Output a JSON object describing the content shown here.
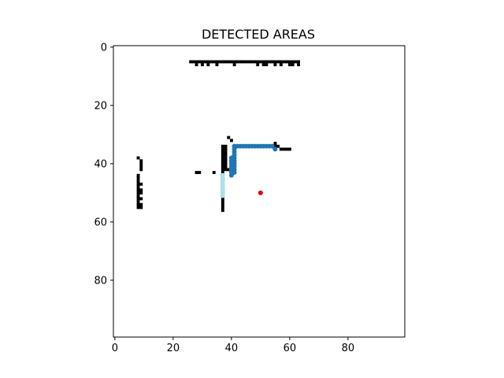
{
  "chart_data": {
    "type": "scatter",
    "title": "DETECTED AREAS",
    "xlabel": "",
    "ylabel": "",
    "xlim": [
      -0.5,
      99.5
    ],
    "ylim": [
      99.5,
      -0.5
    ],
    "y_inverted": true,
    "grid": false,
    "x_ticks": [
      0,
      20,
      40,
      60,
      80
    ],
    "y_ticks": [
      0,
      20,
      40,
      60,
      80
    ],
    "colors": {
      "occupied": "#000000",
      "area_dark": "#1f77b4",
      "area_light": "#aedde8",
      "robot": "#e00000"
    },
    "occupied_segments": [
      {
        "y": 5,
        "x0": 26,
        "x1": 63
      },
      {
        "y": 6,
        "x": [
          28,
          30,
          32,
          35,
          41,
          49,
          51,
          52,
          55,
          57,
          60,
          61,
          63
        ]
      },
      {
        "y": 31,
        "x0": 39,
        "x1": 39
      },
      {
        "y": 32,
        "x0": 40,
        "x1": 40
      },
      {
        "y": 34,
        "x0": 37,
        "x1": 38
      },
      {
        "y": 35,
        "x0": 37,
        "x1": 38
      },
      {
        "y": 35,
        "x0": 57,
        "x1": 60
      },
      {
        "y": 34,
        "x0": 55,
        "x1": 56
      },
      {
        "y": 33,
        "x0": 55,
        "x1": 55
      },
      {
        "y": 36,
        "x0": 37,
        "x1": 38
      },
      {
        "y": 37,
        "x0": 37,
        "x1": 38
      },
      {
        "y": 38,
        "x0": 37,
        "x1": 38
      },
      {
        "y": 39,
        "x0": 37,
        "x1": 38
      },
      {
        "y": 40,
        "x0": 37,
        "x1": 38
      },
      {
        "y": 41,
        "x0": 37,
        "x1": 38
      },
      {
        "y": 42,
        "x0": 37,
        "x1": 39
      },
      {
        "y": 43,
        "x0": 37,
        "x1": 37
      },
      {
        "y": 43,
        "x0": 28,
        "x1": 29
      },
      {
        "y": 43,
        "x0": 34,
        "x1": 34
      },
      {
        "y": 44,
        "x0": 37,
        "x1": 37
      },
      {
        "y": 52,
        "x0": 37,
        "x1": 37
      },
      {
        "y": 53,
        "x0": 37,
        "x1": 37
      },
      {
        "y": 54,
        "x0": 37,
        "x1": 37
      },
      {
        "y": 55,
        "x0": 37,
        "x1": 37
      },
      {
        "y": 56,
        "x0": 37,
        "x1": 37
      },
      {
        "y": 38,
        "x0": 8,
        "x1": 8
      },
      {
        "y": 39,
        "x0": 9,
        "x1": 9
      },
      {
        "y": 40,
        "x0": 9,
        "x1": 9
      },
      {
        "y": 41,
        "x0": 9,
        "x1": 9
      },
      {
        "y": 42,
        "x0": 9,
        "x1": 9
      },
      {
        "y": 44,
        "x0": 8,
        "x1": 8
      },
      {
        "y": 45,
        "x0": 8,
        "x1": 8
      },
      {
        "y": 46,
        "x0": 8,
        "x1": 8
      },
      {
        "y": 47,
        "x0": 8,
        "x1": 9
      },
      {
        "y": 48,
        "x0": 8,
        "x1": 8
      },
      {
        "y": 49,
        "x0": 8,
        "x1": 9
      },
      {
        "y": 50,
        "x0": 8,
        "x1": 9
      },
      {
        "y": 51,
        "x0": 8,
        "x1": 8
      },
      {
        "y": 52,
        "x0": 8,
        "x1": 9
      },
      {
        "y": 53,
        "x0": 8,
        "x1": 8
      },
      {
        "y": 54,
        "x0": 8,
        "x1": 9
      },
      {
        "y": 55,
        "x0": 8,
        "x1": 9
      }
    ],
    "series": [
      {
        "id": "area-dark",
        "points": [
          [
            41,
            34
          ],
          [
            42,
            34
          ],
          [
            43,
            34
          ],
          [
            44,
            34
          ],
          [
            45,
            34
          ],
          [
            46,
            34
          ],
          [
            47,
            34
          ],
          [
            48,
            34
          ],
          [
            49,
            34
          ],
          [
            50,
            34
          ],
          [
            51,
            34
          ],
          [
            52,
            34
          ],
          [
            53,
            34
          ],
          [
            54,
            34
          ],
          [
            55,
            35
          ],
          [
            41,
            35
          ],
          [
            41,
            36
          ],
          [
            41,
            37
          ],
          [
            41,
            38
          ],
          [
            41,
            39
          ],
          [
            41,
            40
          ],
          [
            41,
            41
          ],
          [
            41,
            42
          ],
          [
            41,
            43
          ],
          [
            40,
            38
          ],
          [
            40,
            39
          ],
          [
            40,
            40
          ],
          [
            40,
            41
          ],
          [
            40,
            42
          ],
          [
            40,
            43
          ],
          [
            40,
            44
          ]
        ]
      },
      {
        "id": "area-light",
        "points": [
          [
            37,
            44
          ],
          [
            37,
            45
          ],
          [
            37,
            46
          ],
          [
            37,
            47
          ],
          [
            37,
            48
          ],
          [
            37,
            49
          ],
          [
            37,
            50
          ],
          [
            37,
            51
          ]
        ]
      },
      {
        "id": "robot",
        "points": [
          [
            50,
            50
          ]
        ]
      }
    ]
  }
}
